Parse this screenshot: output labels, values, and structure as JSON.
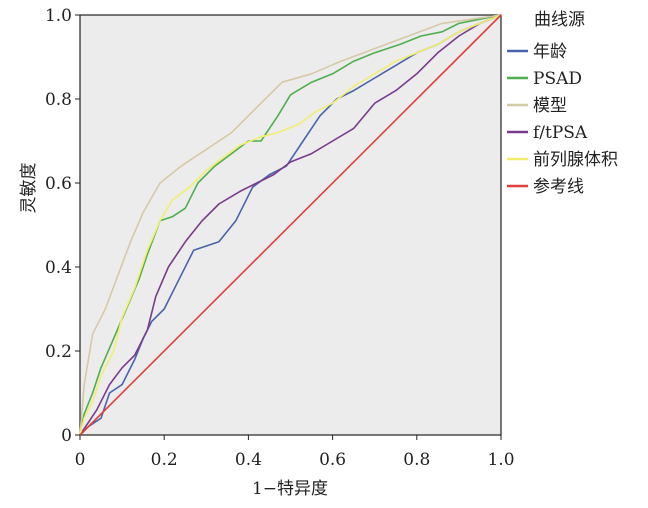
{
  "chart_data": {
    "type": "line",
    "title": "",
    "xlabel": "1−特异度",
    "ylabel": "灵敏度",
    "xlim": [
      0,
      1
    ],
    "ylim": [
      0,
      1
    ],
    "xticks": [
      "0",
      "0.2",
      "0.4",
      "0.6",
      "0.8",
      "1.0"
    ],
    "yticks": [
      "0",
      "0.2",
      "0.4",
      "0.6",
      "0.8",
      "1.0"
    ],
    "legend_title": "曲线源",
    "legend_position": "right",
    "grid": false,
    "series": [
      {
        "name": "年龄",
        "color": "#4a63ae",
        "points": [
          [
            0,
            0
          ],
          [
            0.02,
            0.02
          ],
          [
            0.05,
            0.04
          ],
          [
            0.07,
            0.1
          ],
          [
            0.1,
            0.12
          ],
          [
            0.13,
            0.18
          ],
          [
            0.15,
            0.23
          ],
          [
            0.17,
            0.27
          ],
          [
            0.2,
            0.3
          ],
          [
            0.23,
            0.36
          ],
          [
            0.27,
            0.44
          ],
          [
            0.3,
            0.45
          ],
          [
            0.33,
            0.46
          ],
          [
            0.37,
            0.51
          ],
          [
            0.41,
            0.59
          ],
          [
            0.45,
            0.62
          ],
          [
            0.49,
            0.64
          ],
          [
            0.53,
            0.7
          ],
          [
            0.57,
            0.76
          ],
          [
            0.61,
            0.8
          ],
          [
            0.65,
            0.82
          ],
          [
            0.7,
            0.85
          ],
          [
            0.75,
            0.88
          ],
          [
            0.8,
            0.91
          ],
          [
            0.85,
            0.93
          ],
          [
            0.9,
            0.96
          ],
          [
            0.95,
            0.98
          ],
          [
            1,
            1
          ]
        ]
      },
      {
        "name": "PSAD",
        "color": "#4fae4f",
        "points": [
          [
            0,
            0
          ],
          [
            0.01,
            0.05
          ],
          [
            0.03,
            0.1
          ],
          [
            0.05,
            0.16
          ],
          [
            0.08,
            0.23
          ],
          [
            0.11,
            0.3
          ],
          [
            0.14,
            0.37
          ],
          [
            0.16,
            0.43
          ],
          [
            0.19,
            0.51
          ],
          [
            0.22,
            0.52
          ],
          [
            0.25,
            0.54
          ],
          [
            0.28,
            0.6
          ],
          [
            0.32,
            0.64
          ],
          [
            0.36,
            0.67
          ],
          [
            0.4,
            0.7
          ],
          [
            0.43,
            0.7
          ],
          [
            0.47,
            0.76
          ],
          [
            0.5,
            0.81
          ],
          [
            0.55,
            0.84
          ],
          [
            0.6,
            0.86
          ],
          [
            0.65,
            0.89
          ],
          [
            0.7,
            0.91
          ],
          [
            0.76,
            0.93
          ],
          [
            0.81,
            0.95
          ],
          [
            0.86,
            0.96
          ],
          [
            0.9,
            0.98
          ],
          [
            0.95,
            0.99
          ],
          [
            1,
            1
          ]
        ]
      },
      {
        "name": "模型",
        "color": "#d6c9a6",
        "points": [
          [
            0,
            0
          ],
          [
            0.01,
            0.12
          ],
          [
            0.03,
            0.24
          ],
          [
            0.06,
            0.3
          ],
          [
            0.09,
            0.38
          ],
          [
            0.12,
            0.46
          ],
          [
            0.15,
            0.53
          ],
          [
            0.19,
            0.6
          ],
          [
            0.24,
            0.64
          ],
          [
            0.3,
            0.68
          ],
          [
            0.36,
            0.72
          ],
          [
            0.42,
            0.78
          ],
          [
            0.48,
            0.84
          ],
          [
            0.55,
            0.86
          ],
          [
            0.62,
            0.89
          ],
          [
            0.7,
            0.92
          ],
          [
            0.78,
            0.95
          ],
          [
            0.86,
            0.98
          ],
          [
            0.93,
            0.99
          ],
          [
            1,
            1
          ]
        ]
      },
      {
        "name": "f/tPSA",
        "color": "#7a3a8e",
        "points": [
          [
            0,
            0
          ],
          [
            0.02,
            0.03
          ],
          [
            0.04,
            0.06
          ],
          [
            0.07,
            0.12
          ],
          [
            0.1,
            0.16
          ],
          [
            0.13,
            0.19
          ],
          [
            0.16,
            0.25
          ],
          [
            0.18,
            0.33
          ],
          [
            0.21,
            0.4
          ],
          [
            0.25,
            0.46
          ],
          [
            0.29,
            0.51
          ],
          [
            0.33,
            0.55
          ],
          [
            0.38,
            0.58
          ],
          [
            0.42,
            0.6
          ],
          [
            0.46,
            0.62
          ],
          [
            0.5,
            0.65
          ],
          [
            0.55,
            0.67
          ],
          [
            0.6,
            0.7
          ],
          [
            0.65,
            0.73
          ],
          [
            0.7,
            0.79
          ],
          [
            0.75,
            0.82
          ],
          [
            0.8,
            0.86
          ],
          [
            0.85,
            0.91
          ],
          [
            0.9,
            0.95
          ],
          [
            0.95,
            0.98
          ],
          [
            1,
            1
          ]
        ]
      },
      {
        "name": "前列腺体积",
        "color": "#f2ee6e",
        "points": [
          [
            0,
            0
          ],
          [
            0.01,
            0.04
          ],
          [
            0.03,
            0.08
          ],
          [
            0.05,
            0.14
          ],
          [
            0.08,
            0.2
          ],
          [
            0.1,
            0.28
          ],
          [
            0.13,
            0.35
          ],
          [
            0.16,
            0.44
          ],
          [
            0.19,
            0.51
          ],
          [
            0.22,
            0.56
          ],
          [
            0.26,
            0.59
          ],
          [
            0.3,
            0.63
          ],
          [
            0.34,
            0.66
          ],
          [
            0.38,
            0.69
          ],
          [
            0.43,
            0.71
          ],
          [
            0.47,
            0.72
          ],
          [
            0.52,
            0.74
          ],
          [
            0.56,
            0.77
          ],
          [
            0.6,
            0.79
          ],
          [
            0.65,
            0.83
          ],
          [
            0.7,
            0.86
          ],
          [
            0.75,
            0.89
          ],
          [
            0.8,
            0.91
          ],
          [
            0.85,
            0.93
          ],
          [
            0.9,
            0.96
          ],
          [
            0.95,
            0.98
          ],
          [
            1,
            1
          ]
        ]
      },
      {
        "name": "参考线",
        "color": "#e0403a",
        "points": [
          [
            0,
            0
          ],
          [
            1,
            1
          ]
        ]
      }
    ]
  }
}
